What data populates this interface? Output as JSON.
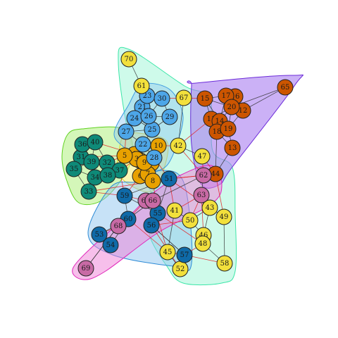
{
  "community_colors": {
    "lime": {
      "fill": "#b8f28a",
      "stroke": "#5fd11f",
      "node": "#0e8a78"
    },
    "yellow": {
      "fill": "#f5f07a",
      "stroke": "#d9d22a",
      "node": "#e8a100"
    },
    "cyan": {
      "fill": "#a6f5d8",
      "stroke": "#3ce6a8",
      "node": "#f2e03c"
    },
    "sky": {
      "fill": "#8ec7f2",
      "stroke": "#3d9be0",
      "node": "#4da6e8"
    },
    "purple": {
      "fill": "#a87df0",
      "stroke": "#6c2bd9",
      "node": "#cc5500"
    },
    "blue": {
      "fill": "#8fc6ef",
      "stroke": "#2e8bd6",
      "node": "#0f6aa8"
    },
    "magenta": {
      "fill": "#ef7fd8",
      "stroke": "#e024b9",
      "node": "#c86aa5"
    }
  },
  "edge_colors": {
    "intra": "#333333",
    "inter": "#e41a1c"
  },
  "nodes": [
    {
      "label": "1",
      "group": "yellow"
    },
    {
      "label": "2",
      "group": "yellow"
    },
    {
      "label": "3",
      "group": "yellow"
    },
    {
      "label": "4",
      "group": "yellow"
    },
    {
      "label": "5",
      "group": "yellow"
    },
    {
      "label": "6",
      "group": "yellow"
    },
    {
      "label": "7",
      "group": "yellow"
    },
    {
      "label": "8",
      "group": "yellow"
    },
    {
      "label": "9",
      "group": "yellow"
    },
    {
      "label": "10",
      "group": "yellow"
    },
    {
      "label": "11",
      "group": "purple"
    },
    {
      "label": "12",
      "group": "purple"
    },
    {
      "label": "13",
      "group": "purple"
    },
    {
      "label": "14",
      "group": "purple"
    },
    {
      "label": "15",
      "group": "purple"
    },
    {
      "label": "16",
      "group": "purple"
    },
    {
      "label": "17",
      "group": "purple"
    },
    {
      "label": "18",
      "group": "purple"
    },
    {
      "label": "19",
      "group": "purple"
    },
    {
      "label": "20",
      "group": "purple"
    },
    {
      "label": "21",
      "group": "sky"
    },
    {
      "label": "22",
      "group": "sky"
    },
    {
      "label": "23",
      "group": "sky"
    },
    {
      "label": "24",
      "group": "sky"
    },
    {
      "label": "25",
      "group": "sky"
    },
    {
      "label": "26",
      "group": "sky"
    },
    {
      "label": "27",
      "group": "sky"
    },
    {
      "label": "28",
      "group": "sky"
    },
    {
      "label": "29",
      "group": "sky"
    },
    {
      "label": "30",
      "group": "sky"
    },
    {
      "label": "31",
      "group": "lime"
    },
    {
      "label": "32",
      "group": "lime"
    },
    {
      "label": "33",
      "group": "lime"
    },
    {
      "label": "34",
      "group": "lime"
    },
    {
      "label": "35",
      "group": "lime"
    },
    {
      "label": "36",
      "group": "lime"
    },
    {
      "label": "37",
      "group": "lime"
    },
    {
      "label": "38",
      "group": "lime"
    },
    {
      "label": "39",
      "group": "lime"
    },
    {
      "label": "40",
      "group": "lime"
    },
    {
      "label": "41",
      "group": "cyan"
    },
    {
      "label": "42",
      "group": "cyan"
    },
    {
      "label": "43",
      "group": "cyan"
    },
    {
      "label": "44",
      "group": "purple"
    },
    {
      "label": "45",
      "group": "cyan"
    },
    {
      "label": "46",
      "group": "cyan"
    },
    {
      "label": "47",
      "group": "cyan"
    },
    {
      "label": "48",
      "group": "cyan"
    },
    {
      "label": "49",
      "group": "cyan"
    },
    {
      "label": "50",
      "group": "cyan"
    },
    {
      "label": "51",
      "group": "blue"
    },
    {
      "label": "52",
      "group": "cyan"
    },
    {
      "label": "53",
      "group": "blue"
    },
    {
      "label": "54",
      "group": "blue"
    },
    {
      "label": "55",
      "group": "blue"
    },
    {
      "label": "56",
      "group": "blue"
    },
    {
      "label": "57",
      "group": "blue"
    },
    {
      "label": "58",
      "group": "cyan"
    },
    {
      "label": "59",
      "group": "blue"
    },
    {
      "label": "60",
      "group": "blue"
    },
    {
      "label": "61",
      "group": "cyan"
    },
    {
      "label": "62",
      "group": "magenta"
    },
    {
      "label": "63",
      "group": "magenta"
    },
    {
      "label": "64",
      "group": "magenta"
    },
    {
      "label": "65",
      "group": "purple"
    },
    {
      "label": "66",
      "group": "magenta"
    },
    {
      "label": "67",
      "group": "cyan"
    },
    {
      "label": "68",
      "group": "magenta"
    },
    {
      "label": "69",
      "group": "magenta"
    },
    {
      "label": "70",
      "group": "cyan"
    }
  ]
}
